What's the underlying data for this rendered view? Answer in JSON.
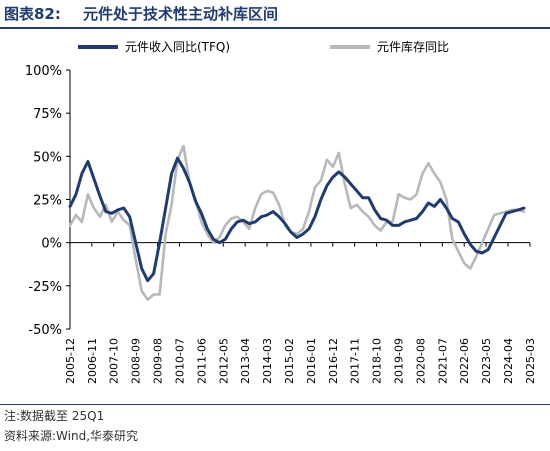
{
  "header": {
    "label": "图表82:",
    "title": "元件处于技术性主动补库区间"
  },
  "footer": {
    "note": "注:数据截至 25Q1",
    "source": "资料来源:Wind,华泰研究"
  },
  "chart_data": {
    "type": "line",
    "title": "",
    "xlabel": "",
    "ylabel": "",
    "ylim": [
      -50,
      100
    ],
    "yticks": [
      "100%",
      "75%",
      "50%",
      "25%",
      "0%",
      "-25%",
      "-50%"
    ],
    "ytick_values": [
      100,
      75,
      50,
      25,
      0,
      -25,
      -50
    ],
    "x_tick_labels": [
      "2005-12",
      "2006-11",
      "2007-10",
      "2008-09",
      "2009-08",
      "2010-07",
      "2011-06",
      "2012-05",
      "2013-04",
      "2014-03",
      "2015-02",
      "2016-01",
      "2016-12",
      "2017-11",
      "2018-10",
      "2019-09",
      "2020-08",
      "2021-07",
      "2022-06",
      "2023-05",
      "2024-04",
      "2025-03"
    ],
    "legend_position": "top",
    "series": [
      {
        "name": "元件收入同比(TFQ)",
        "color": "#1f3b73",
        "values": [
          [
            2005.92,
            21
          ],
          [
            2006.17,
            28
          ],
          [
            2006.42,
            40
          ],
          [
            2006.67,
            47
          ],
          [
            2006.92,
            37
          ],
          [
            2007.17,
            27
          ],
          [
            2007.42,
            18
          ],
          [
            2007.67,
            17
          ],
          [
            2007.92,
            19
          ],
          [
            2008.17,
            20
          ],
          [
            2008.42,
            15
          ],
          [
            2008.67,
            0
          ],
          [
            2008.92,
            -15
          ],
          [
            2009.17,
            -22
          ],
          [
            2009.42,
            -18
          ],
          [
            2009.67,
            0
          ],
          [
            2009.92,
            20
          ],
          [
            2010.17,
            40
          ],
          [
            2010.42,
            49
          ],
          [
            2010.67,
            43
          ],
          [
            2010.92,
            35
          ],
          [
            2011.17,
            24
          ],
          [
            2011.42,
            17
          ],
          [
            2011.67,
            8
          ],
          [
            2011.92,
            2
          ],
          [
            2012.17,
            0
          ],
          [
            2012.42,
            2
          ],
          [
            2012.67,
            8
          ],
          [
            2012.92,
            12
          ],
          [
            2013.17,
            13
          ],
          [
            2013.42,
            11
          ],
          [
            2013.67,
            12
          ],
          [
            2013.92,
            15
          ],
          [
            2014.17,
            16
          ],
          [
            2014.42,
            18
          ],
          [
            2014.67,
            15
          ],
          [
            2014.92,
            11
          ],
          [
            2015.17,
            6
          ],
          [
            2015.42,
            3
          ],
          [
            2015.67,
            5
          ],
          [
            2015.92,
            8
          ],
          [
            2016.17,
            15
          ],
          [
            2016.42,
            25
          ],
          [
            2016.67,
            33
          ],
          [
            2016.92,
            38
          ],
          [
            2017.17,
            41
          ],
          [
            2017.42,
            38
          ],
          [
            2017.67,
            34
          ],
          [
            2017.92,
            30
          ],
          [
            2018.17,
            26
          ],
          [
            2018.42,
            26
          ],
          [
            2018.67,
            19
          ],
          [
            2018.92,
            14
          ],
          [
            2019.17,
            13
          ],
          [
            2019.42,
            10
          ],
          [
            2019.67,
            10
          ],
          [
            2019.92,
            12
          ],
          [
            2020.17,
            13
          ],
          [
            2020.42,
            14
          ],
          [
            2020.67,
            18
          ],
          [
            2020.92,
            23
          ],
          [
            2021.17,
            21
          ],
          [
            2021.42,
            25
          ],
          [
            2021.67,
            20
          ],
          [
            2021.92,
            14
          ],
          [
            2022.17,
            12
          ],
          [
            2022.42,
            5
          ],
          [
            2022.67,
            -1
          ],
          [
            2022.92,
            -5
          ],
          [
            2023.17,
            -6
          ],
          [
            2023.42,
            -4
          ],
          [
            2023.67,
            3
          ],
          [
            2023.92,
            10
          ],
          [
            2024.17,
            17
          ],
          [
            2024.42,
            18
          ],
          [
            2024.67,
            19
          ],
          [
            2024.92,
            20
          ]
        ]
      },
      {
        "name": "元件库存同比",
        "color": "#b8b8b8",
        "values": [
          [
            2005.92,
            10
          ],
          [
            2006.17,
            16
          ],
          [
            2006.42,
            12
          ],
          [
            2006.67,
            28
          ],
          [
            2006.92,
            20
          ],
          [
            2007.17,
            15
          ],
          [
            2007.42,
            22
          ],
          [
            2007.67,
            12
          ],
          [
            2007.92,
            18
          ],
          [
            2008.17,
            13
          ],
          [
            2008.42,
            10
          ],
          [
            2008.67,
            -10
          ],
          [
            2008.92,
            -28
          ],
          [
            2009.17,
            -33
          ],
          [
            2009.42,
            -30
          ],
          [
            2009.67,
            -30
          ],
          [
            2009.92,
            5
          ],
          [
            2010.17,
            22
          ],
          [
            2010.42,
            48
          ],
          [
            2010.67,
            56
          ],
          [
            2010.92,
            35
          ],
          [
            2011.17,
            25
          ],
          [
            2011.42,
            12
          ],
          [
            2011.67,
            5
          ],
          [
            2011.92,
            0
          ],
          [
            2012.17,
            3
          ],
          [
            2012.42,
            10
          ],
          [
            2012.67,
            14
          ],
          [
            2012.92,
            15
          ],
          [
            2013.17,
            12
          ],
          [
            2013.42,
            8
          ],
          [
            2013.67,
            20
          ],
          [
            2013.92,
            28
          ],
          [
            2014.17,
            30
          ],
          [
            2014.42,
            29
          ],
          [
            2014.67,
            22
          ],
          [
            2014.92,
            10
          ],
          [
            2015.17,
            6
          ],
          [
            2015.42,
            5
          ],
          [
            2015.67,
            8
          ],
          [
            2015.92,
            18
          ],
          [
            2016.17,
            32
          ],
          [
            2016.42,
            36
          ],
          [
            2016.67,
            48
          ],
          [
            2016.92,
            44
          ],
          [
            2017.17,
            52
          ],
          [
            2017.42,
            34
          ],
          [
            2017.67,
            20
          ],
          [
            2017.92,
            22
          ],
          [
            2018.17,
            18
          ],
          [
            2018.42,
            15
          ],
          [
            2018.67,
            10
          ],
          [
            2018.92,
            7
          ],
          [
            2019.17,
            12
          ],
          [
            2019.42,
            12
          ],
          [
            2019.67,
            28
          ],
          [
            2019.92,
            26
          ],
          [
            2020.17,
            25
          ],
          [
            2020.42,
            28
          ],
          [
            2020.67,
            40
          ],
          [
            2020.92,
            46
          ],
          [
            2021.17,
            40
          ],
          [
            2021.42,
            35
          ],
          [
            2021.67,
            25
          ],
          [
            2021.92,
            2
          ],
          [
            2022.17,
            -5
          ],
          [
            2022.42,
            -12
          ],
          [
            2022.67,
            -15
          ],
          [
            2022.92,
            -8
          ],
          [
            2023.17,
            0
          ],
          [
            2023.42,
            8
          ],
          [
            2023.67,
            16
          ],
          [
            2023.92,
            17
          ],
          [
            2024.17,
            18
          ],
          [
            2024.42,
            19
          ],
          [
            2024.67,
            19
          ],
          [
            2024.92,
            18
          ]
        ]
      }
    ]
  }
}
